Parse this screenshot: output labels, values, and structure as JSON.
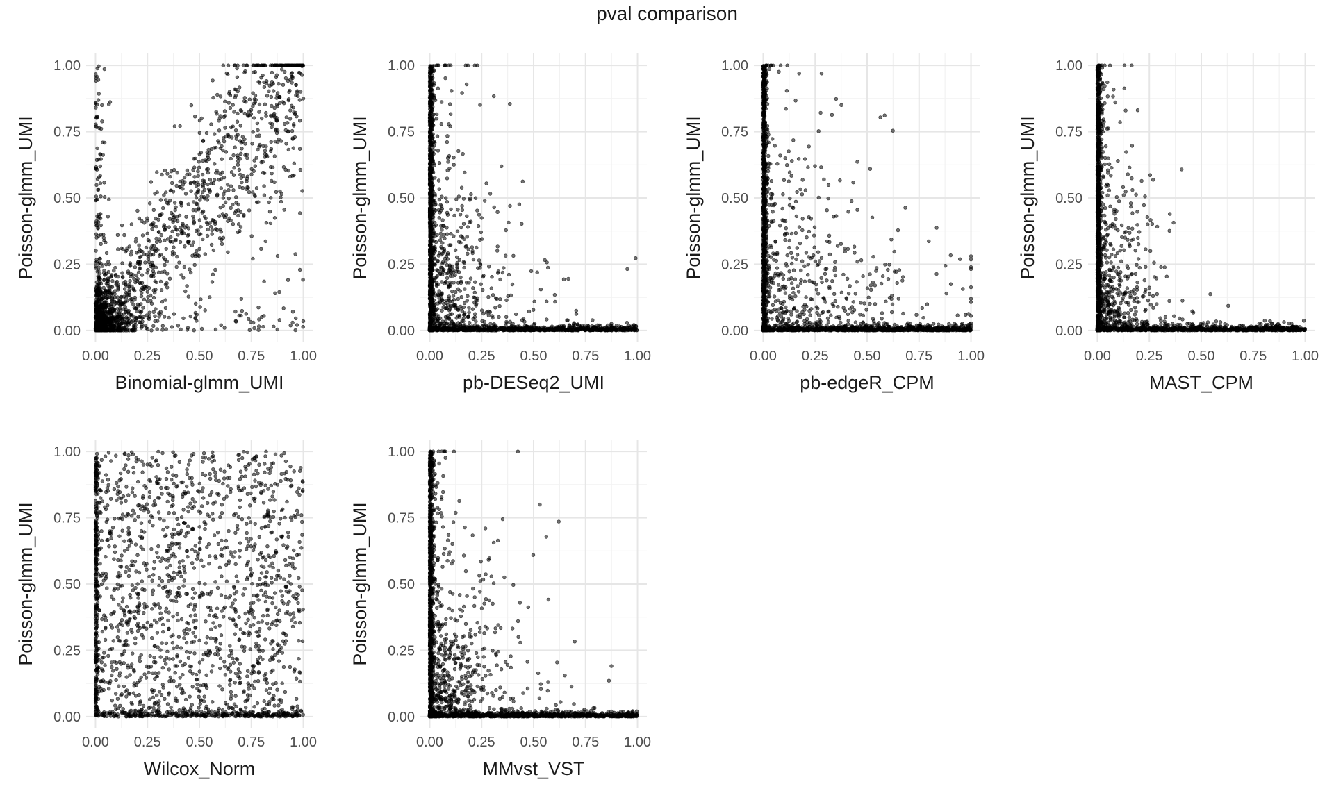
{
  "figure": {
    "title": "pval comparison"
  },
  "style": {
    "grid_major": "#e6e6e6",
    "grid_minor": "#f2f2f2",
    "point_color": "#000000",
    "point_alpha": 0.55
  },
  "chart_data": [
    {
      "type": "scatter",
      "name": "Binomial-glmm_UMI",
      "xlabel": "Binomial-glmm_UMI",
      "ylabel": "Poisson-glmm_UMI",
      "xlim": [
        0,
        1
      ],
      "ylim": [
        0,
        1
      ],
      "xticks": [
        "0.00",
        "0.25",
        "0.50",
        "0.75",
        "1.00"
      ],
      "yticks": [
        "0.00",
        "0.25",
        "0.50",
        "0.75",
        "1.00"
      ],
      "grid": true,
      "pattern": "correlated",
      "approx_points": 1800
    },
    {
      "type": "scatter",
      "name": "pb-DESeq2_UMI",
      "xlabel": "pb-DESeq2_UMI",
      "ylabel": "Poisson-glmm_UMI",
      "xlim": [
        0,
        1
      ],
      "ylim": [
        0,
        1
      ],
      "xticks": [
        "0.00",
        "0.25",
        "0.50",
        "0.75",
        "1.00"
      ],
      "yticks": [
        "0.00",
        "0.25",
        "0.50",
        "0.75",
        "1.00"
      ],
      "grid": true,
      "pattern": "l_shaped",
      "approx_points": 2600
    },
    {
      "type": "scatter",
      "name": "pb-edgeR_CPM",
      "xlabel": "pb-edgeR_CPM",
      "ylabel": "Poisson-glmm_UMI",
      "xlim": [
        0,
        1
      ],
      "ylim": [
        0,
        1
      ],
      "xticks": [
        "0.00",
        "0.25",
        "0.50",
        "0.75",
        "1.00"
      ],
      "yticks": [
        "0.00",
        "0.25",
        "0.50",
        "0.75",
        "1.00"
      ],
      "grid": true,
      "pattern": "l_shaped_wide",
      "approx_points": 2600
    },
    {
      "type": "scatter",
      "name": "MAST_CPM",
      "xlabel": "MAST_CPM",
      "ylabel": "Poisson-glmm_UMI",
      "xlim": [
        0,
        1
      ],
      "ylim": [
        0,
        1
      ],
      "xticks": [
        "0.00",
        "0.25",
        "0.50",
        "0.75",
        "1.00"
      ],
      "yticks": [
        "0.00",
        "0.25",
        "0.50",
        "0.75",
        "1.00"
      ],
      "grid": true,
      "pattern": "l_shaped_tight",
      "approx_points": 2600
    },
    {
      "type": "scatter",
      "name": "Wilcox_Norm",
      "xlabel": "Wilcox_Norm",
      "ylabel": "Poisson-glmm_UMI",
      "xlim": [
        0,
        1
      ],
      "ylim": [
        0,
        1
      ],
      "xticks": [
        "0.00",
        "0.25",
        "0.50",
        "0.75",
        "1.00"
      ],
      "yticks": [
        "0.00",
        "0.25",
        "0.50",
        "0.75",
        "1.00"
      ],
      "grid": true,
      "pattern": "uniform",
      "approx_points": 2000
    },
    {
      "type": "scatter",
      "name": "MMvst_VST",
      "xlabel": "MMvst_VST",
      "ylabel": "Poisson-glmm_UMI",
      "xlim": [
        0,
        1
      ],
      "ylim": [
        0,
        1
      ],
      "xticks": [
        "0.00",
        "0.25",
        "0.50",
        "0.75",
        "1.00"
      ],
      "yticks": [
        "0.00",
        "0.25",
        "0.50",
        "0.75",
        "1.00"
      ],
      "grid": true,
      "pattern": "l_shaped",
      "approx_points": 2600
    }
  ]
}
